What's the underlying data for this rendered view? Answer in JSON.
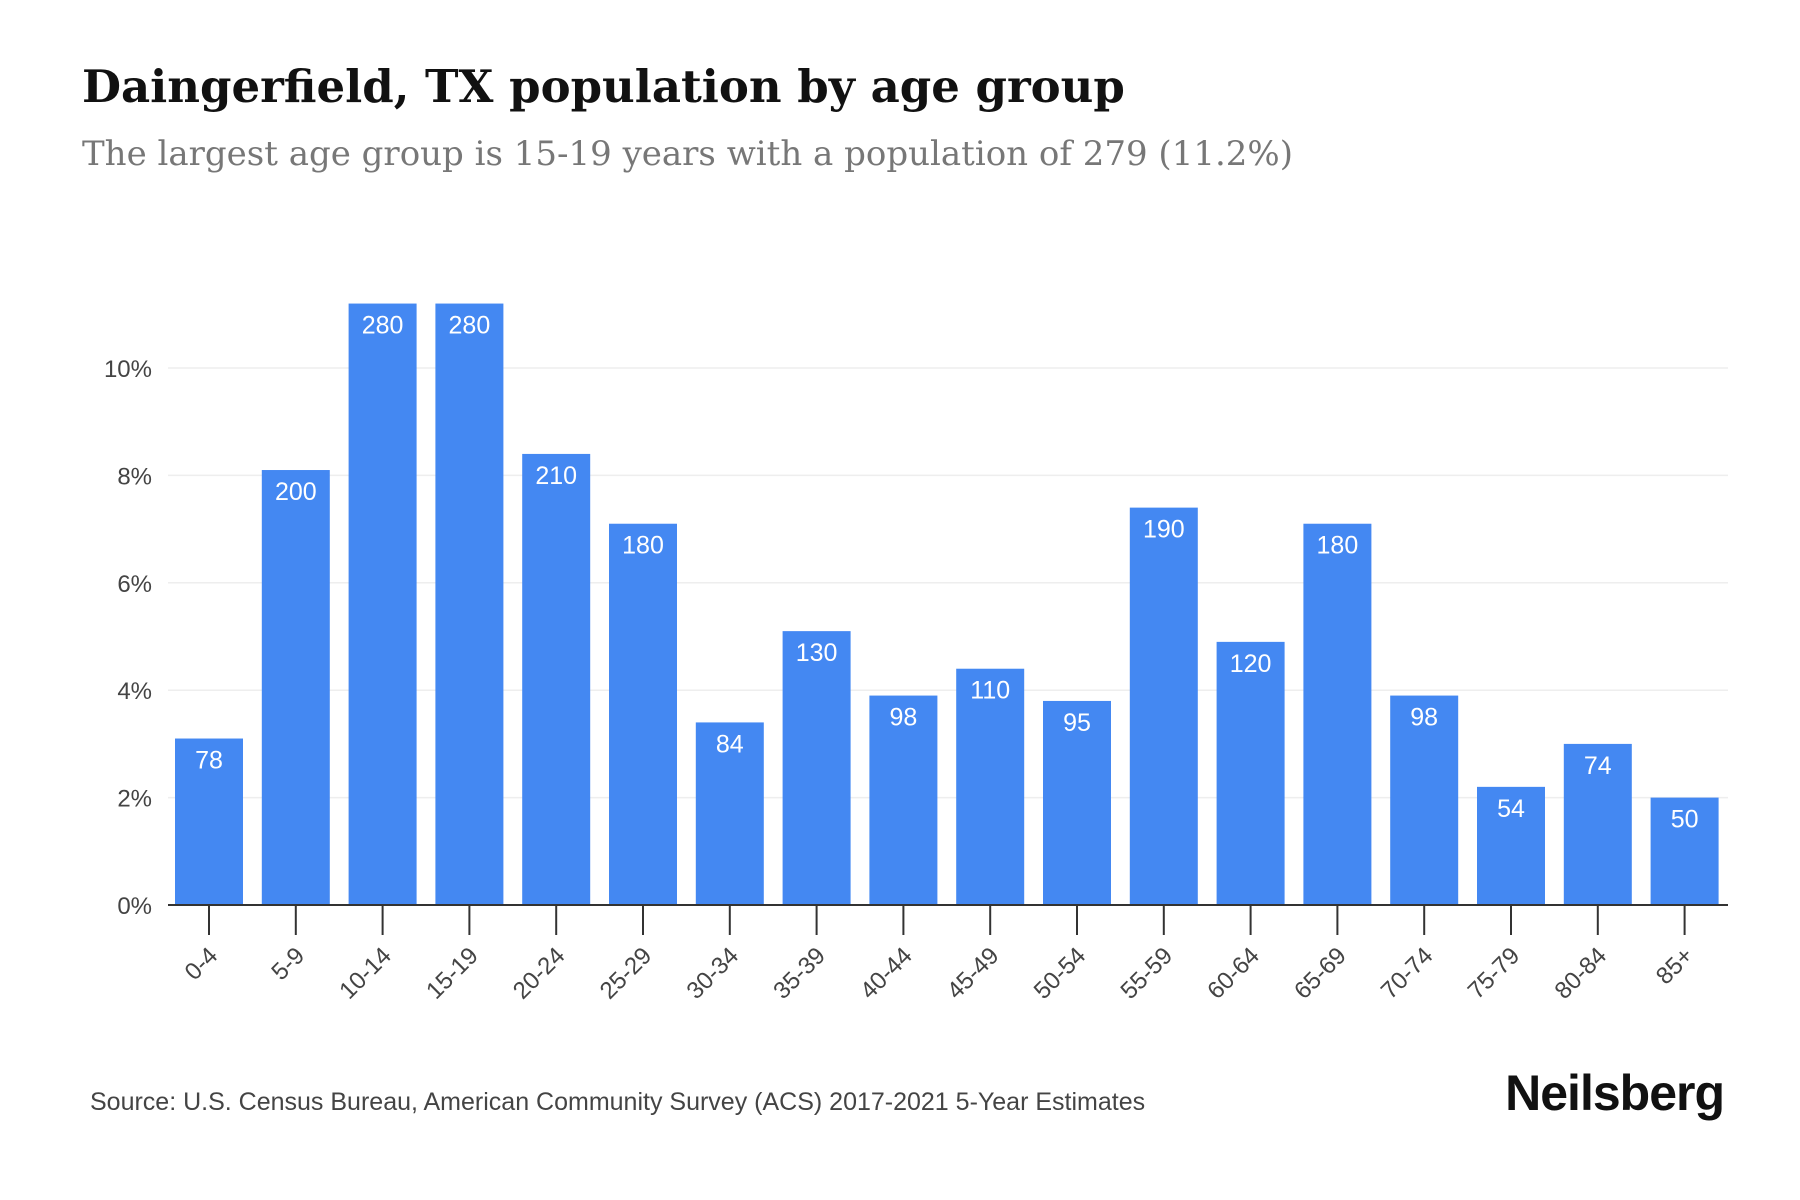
{
  "header": {
    "title": "Daingerfield, TX population by age group",
    "subtitle": "The largest age group is 15-19 years with a population of 279 (11.2%)"
  },
  "footer": {
    "source": "Source: U.S. Census Bureau, American Community Survey (ACS) 2017-2021 5-Year Estimates",
    "brand": "Neilsberg"
  },
  "colors": {
    "bar": "#4488f2",
    "bar_label": "#ffffff",
    "grid": "#eeeeee",
    "axis": "#333333",
    "tick_label": "#444444"
  },
  "chart_data": {
    "type": "bar",
    "categories": [
      "0-4",
      "5-9",
      "10-14",
      "15-19",
      "20-24",
      "25-29",
      "30-34",
      "35-39",
      "40-44",
      "45-49",
      "50-54",
      "55-59",
      "60-64",
      "65-69",
      "70-74",
      "75-79",
      "80-84",
      "85+"
    ],
    "values": [
      3.1,
      8.1,
      11.2,
      11.2,
      8.4,
      7.1,
      3.4,
      5.1,
      3.9,
      4.4,
      3.8,
      7.4,
      4.9,
      7.1,
      3.9,
      2.2,
      3.0,
      2.0
    ],
    "data_labels": [
      "78",
      "200",
      "280",
      "280",
      "210",
      "180",
      "84",
      "130",
      "98",
      "110",
      "95",
      "190",
      "120",
      "180",
      "98",
      "54",
      "74",
      "50"
    ],
    "yticks": [
      0,
      2,
      4,
      6,
      8,
      10
    ],
    "ytick_labels": [
      "0%",
      "2%",
      "4%",
      "6%",
      "8%",
      "10%"
    ],
    "ylim": [
      0,
      12.5
    ],
    "grid": true
  }
}
